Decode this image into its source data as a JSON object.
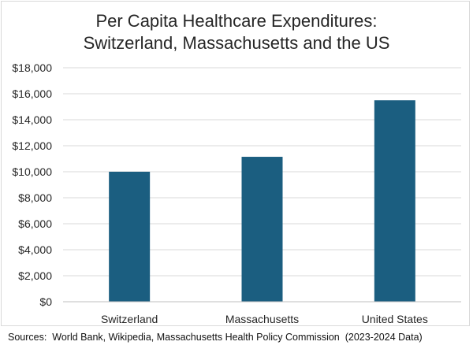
{
  "chart_data": {
    "type": "bar",
    "title_lines": [
      "Per Capita Healthcare Expenditures:",
      "Switzerland, Massachusetts and the US"
    ],
    "categories": [
      "Switzerland",
      "Massachusetts",
      "United States"
    ],
    "values": [
      10000,
      11150,
      15500
    ],
    "ylim": [
      0,
      18000
    ],
    "yticks": [
      0,
      2000,
      4000,
      6000,
      8000,
      10000,
      12000,
      14000,
      16000,
      18000
    ],
    "ytick_labels": [
      "$0",
      "$2,000",
      "$4,000",
      "$6,000",
      "$8,000",
      "$10,000",
      "$12,000",
      "$14,000",
      "$16,000",
      "$18,000"
    ],
    "grid": true,
    "bar_color": "#1b5e80",
    "grid_color": "#d9d9d9",
    "source_note": "Sources:  World Bank, Wikipedia, Massachusetts Health Policy Commission  (2023-2024 Data)"
  }
}
